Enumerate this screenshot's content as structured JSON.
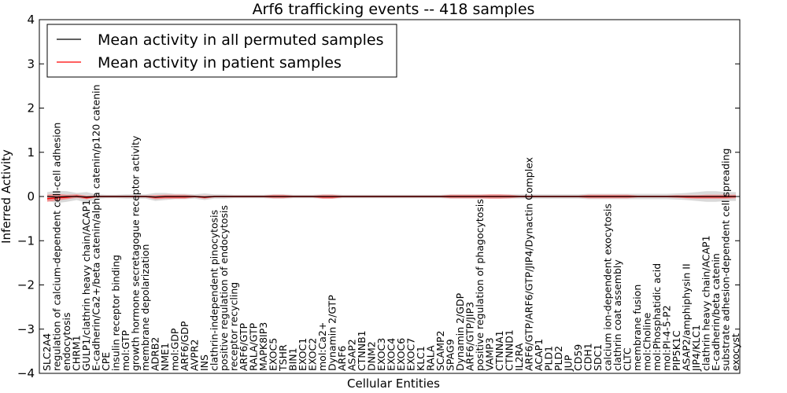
{
  "chart_data": {
    "type": "line",
    "title": "Arf6 trafficking events -- 418 samples",
    "xlabel": "Cellular Entities",
    "ylabel": "Inferred Activity",
    "ylim": [
      -4,
      4
    ],
    "yticks": [
      "−4",
      "−3",
      "−2",
      "−1",
      "0",
      "1",
      "2",
      "3",
      "4"
    ],
    "grid": false,
    "legend_position": "top-left",
    "categories": [
      "SLC2A4",
      "regulation of calcium-dependent cell-cell adhesion",
      "endocytosis",
      "CHRM1",
      "GULP1/clathrin heavy chain/ACAP1",
      "E-cadherin/Ca2+/beta catenin/alpha catenin/p120 catenin",
      "CPE",
      "insulin receptor binding",
      "mol:GTP",
      "growth hormone secretagogue receptor activity",
      "membrane depolarization",
      "ADRB2",
      "NME1",
      "mol:GDP",
      "ARF6/GDP",
      "AVPR2",
      "INS",
      "clathrin-independent pinocytosis",
      "positive regulation of endocytosis",
      "receptor recycling",
      "ARF6/GTP",
      "RALA/GTP",
      "MAPK8IP3",
      "EXOC5",
      "TSHR",
      "BIN1",
      "EXOC1",
      "EXOC2",
      "mol:Ca2+",
      "Dynamin 2/GTP",
      "ARF6",
      "ASAP2",
      "CTNNB1",
      "DNM2",
      "EXOC3",
      "EXOC4",
      "EXOC6",
      "EXOC7",
      "KLC1",
      "RALA",
      "SCAMP2",
      "SPAG9",
      "Dynamin 2/GDP",
      "ARF6/GTP/JIP3",
      "positive regulation of phagocytosis",
      "VAMP3",
      "CTNNA1",
      "CTNND1",
      "IL2RA",
      "ARF6/GTP/ARF6/GTP/JIP4/Dynactin Complex",
      "ACAP1",
      "PLD1",
      "PLD2",
      "JUP",
      "CD59",
      "CDH1",
      "SDC1",
      "calcium ion-dependent exocytosis",
      "clathrin coat assembly",
      "CLTC",
      "membrane fusion",
      "mol:Choline",
      "mol:Phosphatidic acid",
      "mol:PI-4-5-P2",
      "PIP5K1C",
      "ASAP2/amphiphysin II",
      "JIP4/KLC1",
      "clathrin heavy chain/ACAP1",
      "E-cadherin/beta catenin",
      "substrate adhesion-dependent cell spreading",
      "exocyst"
    ],
    "series": [
      {
        "name": "Mean activity in all permuted samples",
        "color": "#000000",
        "values": [
          0.0,
          -0.01,
          0.0,
          0.0,
          -0.01,
          0.0,
          0.0,
          0.0,
          0.0,
          0.0,
          0.0,
          -0.01,
          0.0,
          0.0,
          0.0,
          0.0,
          -0.01,
          0.0,
          0.0,
          0.0,
          0.0,
          0.0,
          0.0,
          0.0,
          0.0,
          0.0,
          0.0,
          0.0,
          0.0,
          0.0,
          0.0,
          0.0,
          0.0,
          0.0,
          0.0,
          0.0,
          0.0,
          0.0,
          0.0,
          0.0,
          0.0,
          0.0,
          0.0,
          0.0,
          0.0,
          0.0,
          0.0,
          0.0,
          0.0,
          0.0,
          0.0,
          0.0,
          0.0,
          0.0,
          0.0,
          0.0,
          0.0,
          0.0,
          0.0,
          0.0,
          0.0,
          0.0,
          0.0,
          0.0,
          0.0,
          0.0,
          0.0,
          0.0,
          0.0,
          0.0,
          0.0
        ],
        "band_low": [
          -0.1,
          -0.15,
          -0.12,
          -0.08,
          -0.14,
          -0.05,
          -0.04,
          -0.04,
          -0.05,
          -0.05,
          -0.05,
          -0.1,
          -0.08,
          -0.06,
          -0.06,
          -0.05,
          -0.08,
          -0.05,
          -0.05,
          -0.04,
          -0.04,
          -0.04,
          -0.04,
          -0.05,
          -0.05,
          -0.04,
          -0.04,
          -0.04,
          -0.05,
          -0.05,
          -0.04,
          -0.04,
          -0.04,
          -0.04,
          -0.04,
          -0.04,
          -0.04,
          -0.04,
          -0.04,
          -0.04,
          -0.04,
          -0.05,
          -0.05,
          -0.05,
          -0.05,
          -0.05,
          -0.05,
          -0.05,
          -0.05,
          -0.05,
          -0.05,
          -0.05,
          -0.05,
          -0.05,
          -0.05,
          -0.06,
          -0.06,
          -0.06,
          -0.06,
          -0.06,
          -0.06,
          -0.06,
          -0.06,
          -0.06,
          -0.07,
          -0.08,
          -0.1,
          -0.12,
          -0.12,
          -0.1,
          -0.1
        ],
        "band_high": [
          0.1,
          0.13,
          0.12,
          0.08,
          0.1,
          0.05,
          0.04,
          0.04,
          0.05,
          0.05,
          0.05,
          0.08,
          0.08,
          0.06,
          0.06,
          0.05,
          0.07,
          0.05,
          0.05,
          0.04,
          0.04,
          0.04,
          0.04,
          0.05,
          0.05,
          0.04,
          0.04,
          0.04,
          0.05,
          0.05,
          0.04,
          0.04,
          0.04,
          0.04,
          0.04,
          0.04,
          0.04,
          0.04,
          0.04,
          0.04,
          0.04,
          0.05,
          0.05,
          0.05,
          0.05,
          0.05,
          0.05,
          0.05,
          0.05,
          0.05,
          0.05,
          0.05,
          0.05,
          0.05,
          0.05,
          0.06,
          0.06,
          0.06,
          0.06,
          0.06,
          0.06,
          0.06,
          0.06,
          0.06,
          0.07,
          0.08,
          0.1,
          0.12,
          0.12,
          0.1,
          0.1
        ]
      },
      {
        "name": "Mean activity in patient samples",
        "color": "#ff0000",
        "values": [
          -0.05,
          -0.03,
          -0.02,
          0.01,
          -0.03,
          0.0,
          0.0,
          0.0,
          0.0,
          0.0,
          0.0,
          -0.02,
          -0.01,
          -0.01,
          -0.01,
          0.0,
          -0.02,
          0.0,
          0.0,
          0.0,
          0.0,
          0.0,
          0.0,
          0.0,
          0.0,
          0.0,
          0.0,
          0.0,
          -0.01,
          -0.01,
          0.0,
          0.0,
          0.0,
          0.0,
          0.0,
          0.0,
          0.0,
          0.0,
          0.0,
          0.0,
          0.0,
          0.0,
          0.0,
          0.0,
          0.0,
          0.0,
          0.0,
          0.0,
          0.0,
          0.0,
          0.0,
          0.0,
          0.0,
          0.0,
          0.0,
          0.0,
          0.0,
          0.0,
          0.0,
          0.0,
          0.0,
          0.0,
          0.0,
          0.0,
          0.0,
          -0.01,
          -0.01,
          -0.01,
          -0.01,
          -0.01,
          0.0
        ],
        "band_low": [
          -0.12,
          -0.09,
          -0.06,
          -0.03,
          -0.06,
          -0.02,
          -0.02,
          -0.02,
          -0.02,
          -0.02,
          -0.02,
          -0.06,
          -0.05,
          -0.05,
          -0.05,
          -0.02,
          -0.05,
          -0.02,
          -0.02,
          -0.02,
          -0.02,
          -0.02,
          -0.02,
          -0.04,
          -0.04,
          -0.02,
          -0.02,
          -0.02,
          -0.05,
          -0.05,
          -0.02,
          -0.02,
          -0.02,
          -0.02,
          -0.02,
          -0.02,
          -0.02,
          -0.02,
          -0.02,
          -0.02,
          -0.02,
          -0.04,
          -0.04,
          -0.04,
          -0.04,
          -0.05,
          -0.05,
          -0.04,
          -0.02,
          -0.02,
          -0.02,
          -0.02,
          -0.02,
          -0.02,
          -0.02,
          -0.04,
          -0.04,
          -0.04,
          -0.04,
          -0.04,
          -0.02,
          -0.02,
          -0.02,
          -0.02,
          -0.03,
          -0.04,
          -0.05,
          -0.05,
          -0.05,
          -0.05,
          -0.04
        ],
        "band_high": [
          0.04,
          0.06,
          0.04,
          0.05,
          0.02,
          0.02,
          0.02,
          0.02,
          0.02,
          0.02,
          0.02,
          0.03,
          0.04,
          0.04,
          0.04,
          0.02,
          0.02,
          0.02,
          0.02,
          0.02,
          0.02,
          0.02,
          0.02,
          0.04,
          0.04,
          0.02,
          0.02,
          0.02,
          0.04,
          0.04,
          0.02,
          0.02,
          0.02,
          0.02,
          0.02,
          0.02,
          0.02,
          0.02,
          0.02,
          0.02,
          0.02,
          0.04,
          0.04,
          0.04,
          0.04,
          0.05,
          0.05,
          0.04,
          0.02,
          0.02,
          0.02,
          0.02,
          0.02,
          0.02,
          0.02,
          0.04,
          0.04,
          0.04,
          0.04,
          0.04,
          0.02,
          0.02,
          0.02,
          0.02,
          0.03,
          0.03,
          0.03,
          0.04,
          0.04,
          0.04,
          0.04
        ]
      }
    ]
  }
}
